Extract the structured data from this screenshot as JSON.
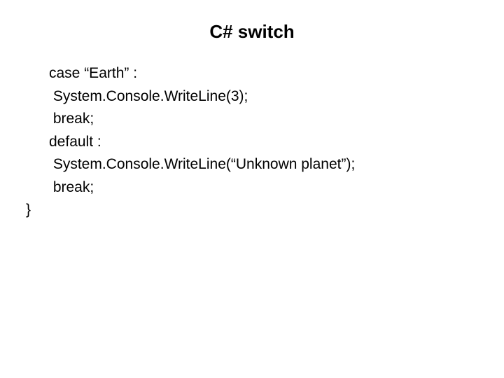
{
  "title": "C#   switch",
  "code": {
    "lines": [
      {
        "text": "case “Earth” :",
        "indent": "indent-1"
      },
      {
        "text": " System.Console.WriteLine(3);",
        "indent": "indent-1"
      },
      {
        "text": " break;",
        "indent": "indent-1"
      },
      {
        "text": "default :",
        "indent": "indent-1"
      },
      {
        "text": " System.Console.WriteLine(“Unknown planet”);",
        "indent": "indent-1"
      },
      {
        "text": " break;",
        "indent": "indent-1"
      },
      {
        "text": "}",
        "indent": "indent-0"
      }
    ]
  },
  "colors": {
    "background": "#ffffff",
    "text": "#000000"
  },
  "typography": {
    "title_fontsize": 26,
    "title_weight": "bold",
    "code_fontsize": 21,
    "line_height": 1.55,
    "font_family": "Arial"
  }
}
